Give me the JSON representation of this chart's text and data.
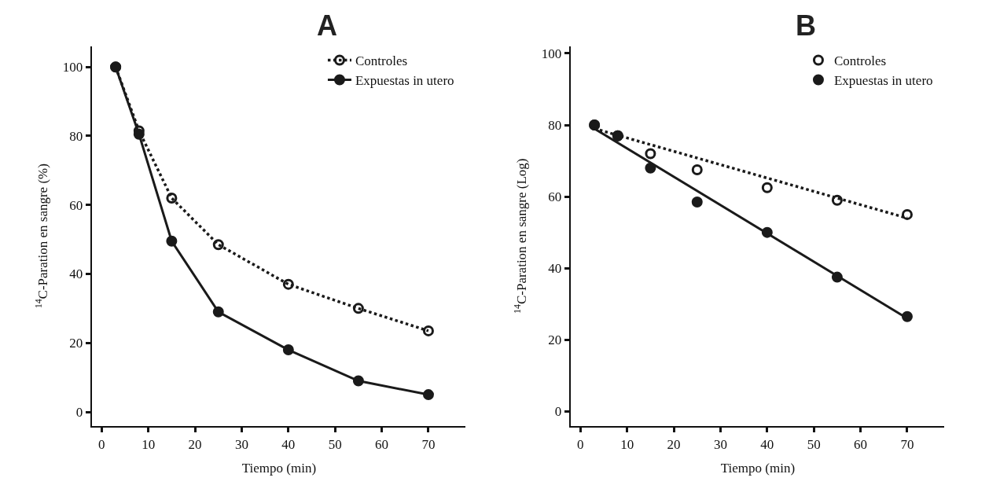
{
  "chart_data": [
    {
      "type": "line",
      "title": "A",
      "xlabel": "Tiempo (min)",
      "ylabel": "$^{14}$C-Paration en sangre (%)",
      "xlim": [
        -2,
        78
      ],
      "ylim": [
        -4,
        106
      ],
      "xticks": [
        0,
        10,
        20,
        30,
        40,
        50,
        60,
        70
      ],
      "yticks": [
        0,
        20,
        40,
        60,
        80,
        100
      ],
      "legend": "top right",
      "series": [
        {
          "name": "Controles",
          "color": "#1a1a1a",
          "marker": "circle-open",
          "line_style": "dotted",
          "x": [
            3,
            8,
            15,
            25,
            40,
            55,
            70
          ],
          "values": [
            100,
            81.5,
            62,
            48.5,
            37,
            30,
            23.5
          ]
        },
        {
          "name": "Expuestas in utero",
          "color": "#1a1a1a",
          "marker": "circle",
          "line_style": "solid",
          "x": [
            3,
            8,
            15,
            25,
            40,
            55,
            70
          ],
          "values": [
            100,
            80.5,
            49.5,
            29,
            18,
            9,
            5
          ]
        }
      ]
    },
    {
      "type": "line",
      "title": "B",
      "xlabel": "Tiempo (min)",
      "ylabel": "$^{14}$C-Paration en sangre (Log)",
      "xlim": [
        -2,
        78
      ],
      "ylim": [
        -4,
        102
      ],
      "xticks": [
        0,
        10,
        20,
        30,
        40,
        50,
        60,
        70
      ],
      "yticks": [
        0,
        20,
        40,
        60,
        80,
        100
      ],
      "legend": "top right",
      "series": [
        {
          "name": "Controles",
          "color": "#1a1a1a",
          "type": "scatter",
          "marker": "circle-open",
          "x": [
            3,
            8,
            15,
            25,
            40,
            55,
            70
          ],
          "values": [
            80,
            77,
            72,
            67.5,
            62.5,
            59,
            55
          ]
        },
        {
          "name": "Expuestas in utero",
          "color": "#1a1a1a",
          "type": "scatter",
          "marker": "circle",
          "x": [
            3,
            8,
            15,
            25,
            40,
            55,
            70
          ],
          "values": [
            80,
            77,
            68,
            58.5,
            50,
            37.5,
            26.5
          ]
        },
        {
          "color": "#1a1a1a",
          "marker": "none",
          "line_style": "dotted",
          "x": [
            3,
            70
          ],
          "values": [
            79,
            54
          ]
        },
        {
          "color": "#1a1a1a",
          "marker": "none",
          "line_style": "solid",
          "x": [
            3,
            70
          ],
          "values": [
            79,
            26
          ]
        }
      ]
    }
  ]
}
